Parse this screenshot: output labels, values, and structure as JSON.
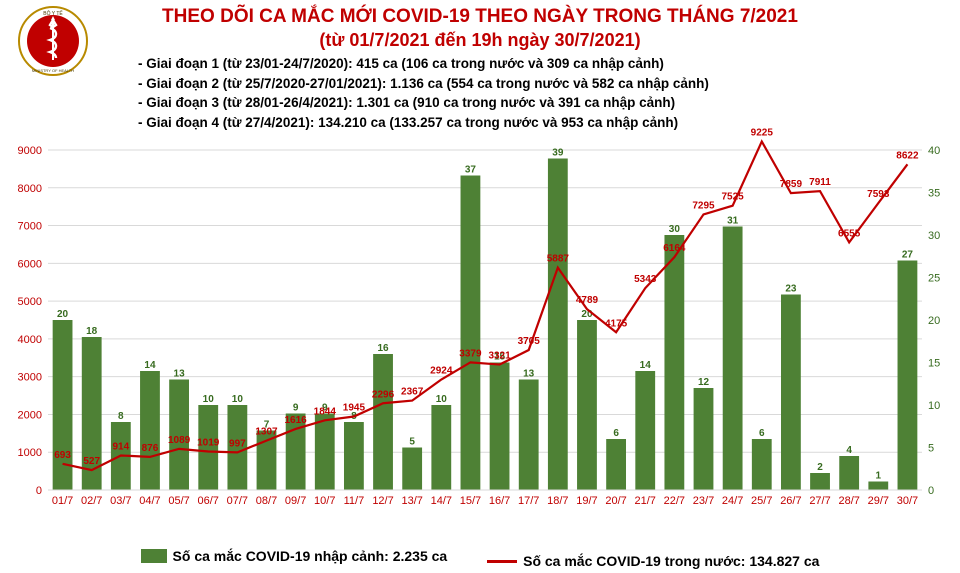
{
  "title": {
    "line1": "THEO DÕI CA MẮC MỚI COVID-19 THEO NGÀY TRONG THÁNG 7/2021",
    "line2": "(từ 01/7/2021 đến 19h ngày 30/7/2021)",
    "color": "#c00000",
    "fontsize_line1": 19,
    "fontsize_line2": 18
  },
  "phases": [
    "- Giai đoạn 1 (từ 23/01-24/7/2020): 415 ca (106 ca trong nước và 309 ca nhập cảnh)",
    "- Giai đoạn 2 (từ 25/7/2020-27/01/2021): 1.136 ca (554 ca trong nước và 582 ca nhập cảnh)",
    "- Giai đoạn 3 (từ 28/01-26/4/2021): 1.301 ca (910 ca trong nước và 391 ca nhập cảnh)",
    "- Giai đoạn 4 (từ 27/4/2021): 134.210 ca (133.257 ca trong nước và 953 ca nhập cảnh)"
  ],
  "chart": {
    "type": "bar+line",
    "categories": [
      "01/7",
      "02/7",
      "03/7",
      "04/7",
      "05/7",
      "06/7",
      "07/7",
      "08/7",
      "09/7",
      "10/7",
      "11/7",
      "12/7",
      "13/7",
      "14/7",
      "15/7",
      "16/7",
      "17/7",
      "18/7",
      "19/7",
      "20/7",
      "21/7",
      "22/7",
      "23/7",
      "24/7",
      "25/7",
      "26/7",
      "27/7",
      "28/7",
      "29/7",
      "30/7"
    ],
    "bar_values": [
      20,
      18,
      8,
      14,
      13,
      10,
      10,
      7,
      9,
      9,
      8,
      16,
      5,
      10,
      37,
      15,
      13,
      39,
      20,
      6,
      14,
      30,
      12,
      31,
      6,
      23,
      2,
      4,
      1,
      27
    ],
    "line_values": [
      693,
      527,
      914,
      876,
      1089,
      1019,
      997,
      1307,
      1616,
      1844,
      1945,
      2296,
      2367,
      2924,
      3379,
      3321,
      3705,
      5887,
      4789,
      4175,
      5343,
      6164,
      7295,
      7525,
      9225,
      7859,
      7911,
      6555,
      7593,
      8622
    ],
    "bar_labels": [
      "20",
      "18",
      "8",
      "14",
      "13",
      "10",
      "10",
      "7",
      "9",
      "9",
      "8",
      "16",
      "5",
      "10",
      "37",
      "15",
      "13",
      "39",
      "20",
      "6",
      "14",
      "30",
      "12",
      "31",
      "6",
      "23",
      "2",
      "4",
      "1",
      "27"
    ],
    "line_labels": [
      "693",
      "527",
      "914",
      "876",
      "1089",
      "1019",
      "997",
      "1307",
      "1616",
      "1844",
      "1945",
      "2296",
      "2367",
      "2924",
      "3379",
      "3321",
      "3705",
      "5887",
      "4789",
      "4175",
      "5343",
      "6164",
      "7295",
      "7525",
      "9225",
      "7859",
      "7911",
      "6555",
      "7593",
      "8622"
    ],
    "left_axis": {
      "min": 0,
      "max": 9000,
      "step": 1000,
      "color": "#c00000"
    },
    "right_axis": {
      "min": 0,
      "max": 40,
      "step": 5,
      "color": "#376b1f"
    },
    "bar_color": "#4e8135",
    "line_color": "#c00000",
    "grid_color": "#d9d9d9",
    "background_color": "#ffffff",
    "bar_label_color": "#376b1f",
    "line_label_color": "#c00000",
    "axis_label_color_left": "#c00000",
    "axis_label_color_right": "#376b1f",
    "xaxis_label_color": "#c00000",
    "font_size_axis": 11,
    "font_size_datalabel": 10,
    "line_width": 2.2,
    "bar_width_ratio": 0.68
  },
  "legend": {
    "bar_label": "Số ca mắc COVID-19 nhập cảnh: 2.235 ca",
    "line_label": "Số ca mắc COVID-19 trong nước: 134.827 ca",
    "bar_color": "#4e8135",
    "line_color": "#c00000",
    "text_color": "#000000"
  },
  "logo": {
    "outer_ring": "#b88a00",
    "inner_fill": "#c00000",
    "symbol_fill": "#ffffff",
    "text_color": "#4a3a00"
  }
}
